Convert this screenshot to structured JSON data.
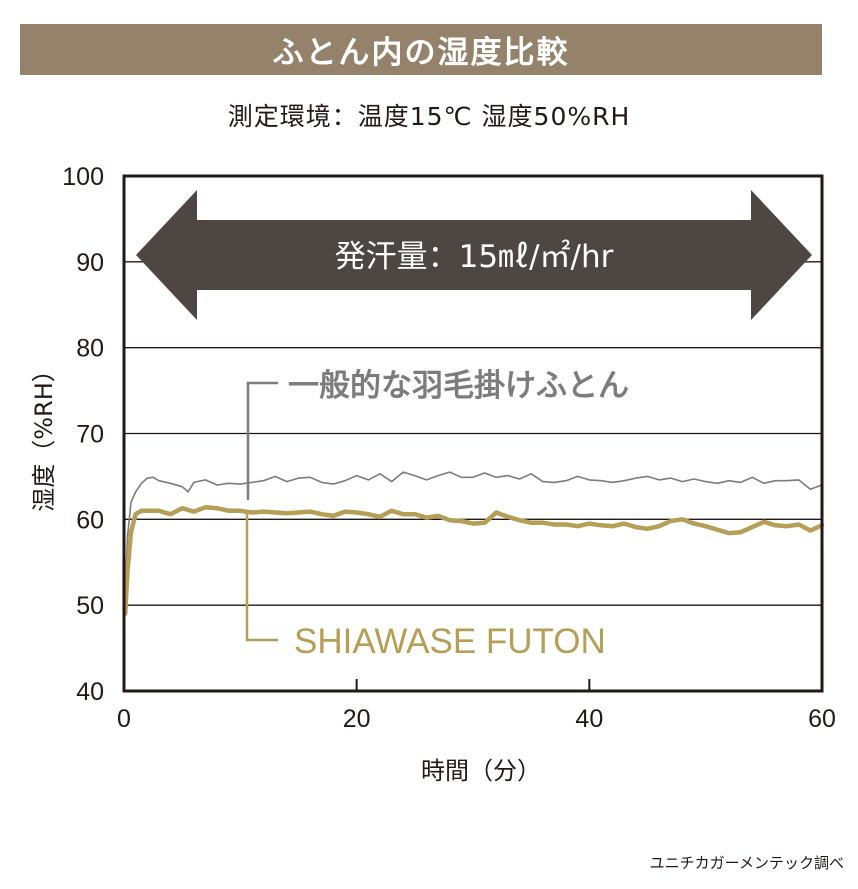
{
  "header": {
    "title": "ふとん内の湿度比較",
    "subtitle": "測定環境：温度15℃  湿度50%RH",
    "source": "ユニチカガーメンテック調べ"
  },
  "colors": {
    "brand": "#94826a",
    "arrow": "#4d4643",
    "series_conventional": "#7c7c7c",
    "series_shiawase": "#b59e56"
  },
  "chart_data": {
    "type": "line",
    "xlabel": "時間（分）",
    "ylabel": "湿度（%RH）",
    "xlim": [
      0,
      60
    ],
    "ylim": [
      40,
      100
    ],
    "x_ticks": [
      0,
      20,
      40,
      60
    ],
    "y_ticks": [
      40,
      50,
      60,
      70,
      80,
      90,
      100
    ],
    "grid": "horizontal",
    "annotation": "発汗量：15㎖/㎡/hr",
    "series": [
      {
        "name": "一般的な羽毛掛けふとん",
        "x": [
          0.1,
          0.3,
          0.6,
          1,
          1.5,
          2,
          2.5,
          3,
          4,
          5,
          5.5,
          6,
          7,
          8,
          9,
          10,
          11,
          12,
          13,
          14,
          15,
          16,
          17,
          18,
          19,
          20,
          21,
          22,
          23,
          24,
          25,
          26,
          27,
          28,
          29,
          30,
          31,
          32,
          33,
          34,
          35,
          36,
          37,
          38,
          39,
          40,
          41,
          42,
          43,
          44,
          45,
          46,
          47,
          48,
          49,
          50,
          51,
          52,
          53,
          54,
          55,
          56,
          57,
          58,
          59,
          60
        ],
        "y": [
          51.5,
          58,
          62,
          63.2,
          64.2,
          64.8,
          64.9,
          64.5,
          64.2,
          63.8,
          63.2,
          64.3,
          64.6,
          64,
          64.2,
          64.1,
          64.3,
          64.5,
          65,
          64.4,
          64.8,
          64.9,
          64.3,
          64.1,
          64.5,
          65.1,
          64.6,
          65.3,
          64.4,
          65.5,
          65.1,
          64.6,
          65.1,
          65.5,
          64.9,
          64.9,
          65.4,
          64.9,
          65.1,
          64.7,
          65.3,
          64.4,
          64.3,
          64.5,
          65,
          64.6,
          64.5,
          64.3,
          64.5,
          64.8,
          65,
          64.6,
          64.8,
          64.4,
          64.7,
          64.4,
          64.2,
          64.5,
          64.3,
          64.9,
          64.2,
          64.5,
          64.5,
          64.6,
          63.5,
          64
        ]
      },
      {
        "name": "SHIAWASE FUTON",
        "x": [
          0.1,
          0.3,
          0.6,
          1,
          1.5,
          2,
          2.5,
          3,
          4,
          5,
          6,
          7,
          8,
          9,
          10,
          11,
          12,
          13,
          14,
          15,
          16,
          17,
          18,
          19,
          20,
          21,
          22,
          23,
          24,
          25,
          26,
          27,
          28,
          29,
          30,
          31,
          32,
          33,
          34,
          35,
          36,
          37,
          38,
          39,
          40,
          41,
          42,
          43,
          44,
          45,
          46,
          47,
          48,
          49,
          50,
          51,
          52,
          53,
          54,
          55,
          56,
          57,
          58,
          59,
          60
        ],
        "y": [
          49,
          54,
          58.5,
          60.6,
          61,
          61,
          61,
          61,
          60.6,
          61.3,
          60.9,
          61.4,
          61.3,
          61,
          61,
          60.8,
          60.9,
          60.8,
          60.7,
          60.8,
          60.9,
          60.6,
          60.4,
          60.9,
          60.8,
          60.6,
          60.3,
          61,
          60.6,
          60.6,
          60.2,
          60.4,
          59.9,
          59.8,
          59.5,
          59.6,
          60.8,
          60.3,
          59.9,
          59.6,
          59.6,
          59.4,
          59.4,
          59.2,
          59.5,
          59.3,
          59.2,
          59.5,
          59.1,
          58.9,
          59.2,
          59.8,
          60,
          59.5,
          59.2,
          58.8,
          58.4,
          58.5,
          59.1,
          59.7,
          59.3,
          59.2,
          59.4,
          58.7,
          59.3
        ]
      }
    ]
  }
}
